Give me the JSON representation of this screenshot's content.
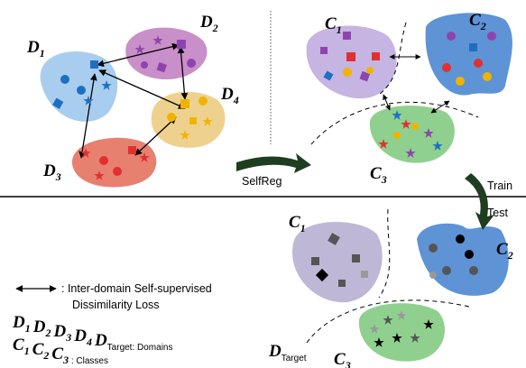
{
  "domains": [
    {
      "base": "D",
      "sub": "1"
    },
    {
      "base": "D",
      "sub": "2"
    },
    {
      "base": "D",
      "sub": "3"
    },
    {
      "base": "D",
      "sub": "4"
    }
  ],
  "train_classes": [
    {
      "base": "C",
      "sub": "1"
    },
    {
      "base": "C",
      "sub": "2"
    },
    {
      "base": "C",
      "sub": "3"
    }
  ],
  "test_classes": [
    {
      "base": "C",
      "sub": "1"
    },
    {
      "base": "C",
      "sub": "2"
    },
    {
      "base": "C",
      "sub": "3"
    }
  ],
  "target": {
    "base": "D",
    "sub": "Target"
  },
  "arrows": {
    "selfreg": "SelfReg",
    "train": "Train",
    "test": "Test"
  },
  "legend": {
    "loss": [
      ": Inter-domain Self-supervised",
      "Dissimilarity Loss"
    ],
    "domains": {
      "items": [
        {
          "base": "D",
          "sub": "1"
        },
        {
          "base": "D",
          "sub": "2"
        },
        {
          "base": "D",
          "sub": "3"
        },
        {
          "base": "D",
          "sub": "4"
        },
        {
          "base": "D",
          "sub": "Target"
        }
      ],
      "text": ": Domains"
    },
    "classes": {
      "items": [
        {
          "base": "C",
          "sub": "1"
        },
        {
          "base": "C",
          "sub": "2"
        },
        {
          "base": "C",
          "sub": "3"
        }
      ],
      "text": " : Classes"
    }
  }
}
